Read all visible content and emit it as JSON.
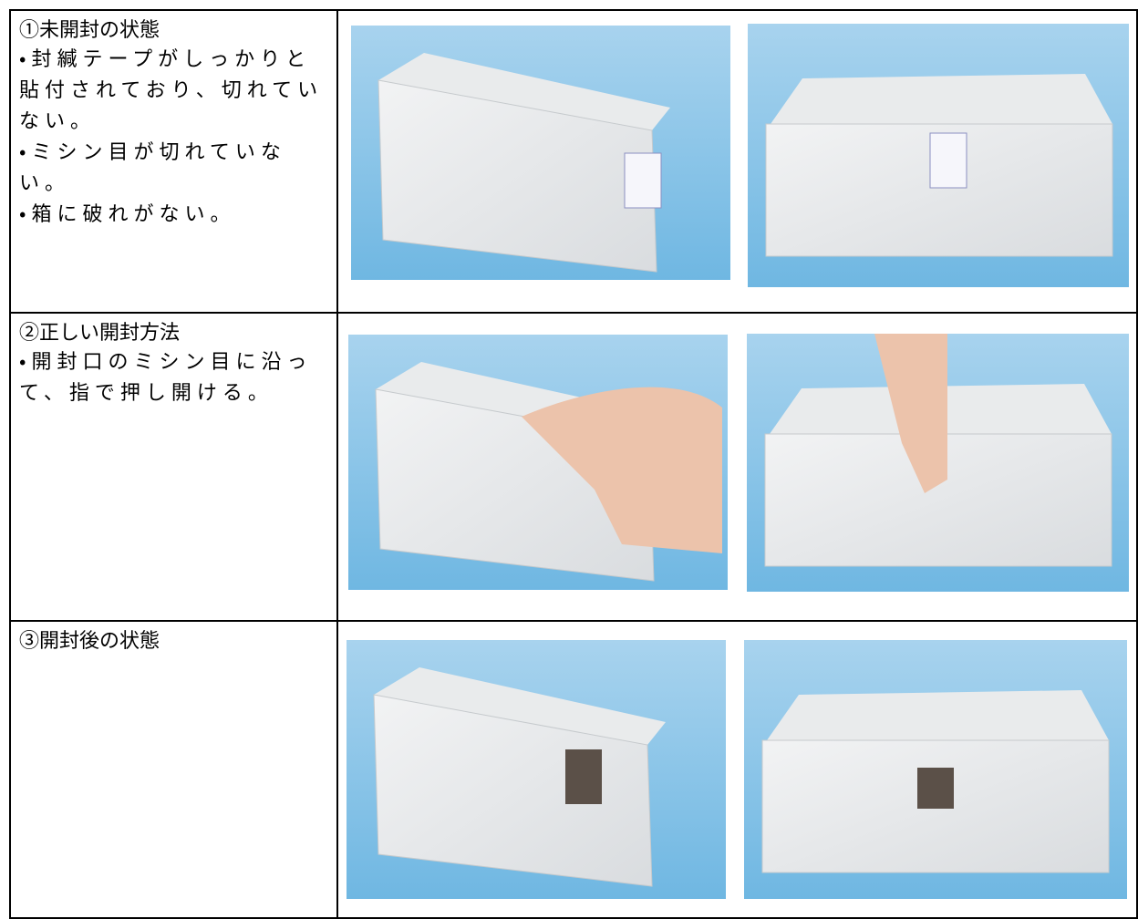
{
  "table": {
    "rows": [
      {
        "title": "①未開封の状態",
        "lines": [
          "・封緘テープがしっかりと貼付されており、切れていない。",
          "・ミシン目が切れていない。",
          "・箱に破れがない。"
        ]
      },
      {
        "title": "②正しい開封方法",
        "lines": [
          "・開封口のミシン目に沿って、指で押し開ける。"
        ]
      },
      {
        "title": "③開封後の状態",
        "lines": []
      }
    ]
  }
}
